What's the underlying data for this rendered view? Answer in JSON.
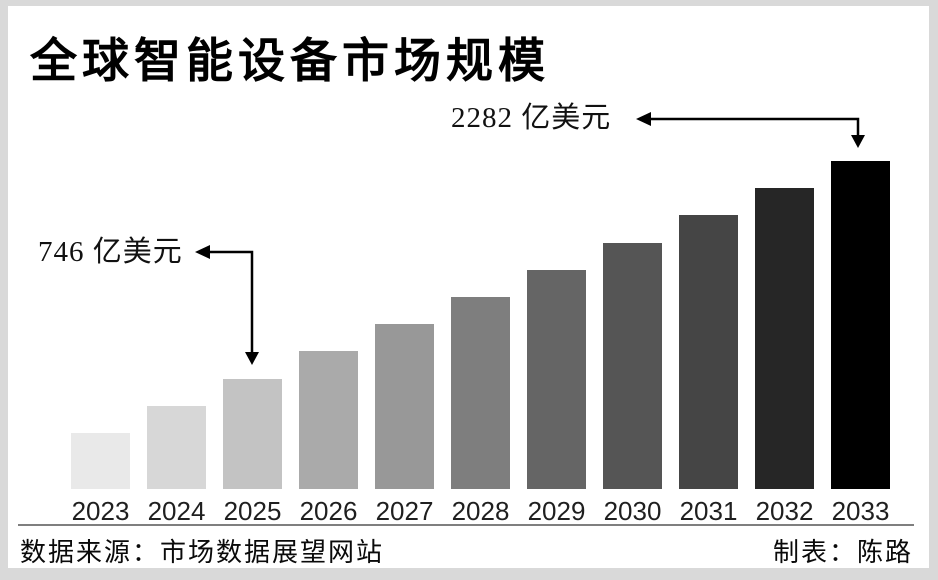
{
  "title": "全球智能设备市场规模",
  "annotations": {
    "max": {
      "label": "2282 亿美元",
      "target_year": "2033"
    },
    "mid": {
      "label": "746 亿美元",
      "target_year": "2025"
    }
  },
  "chart_data": {
    "type": "bar",
    "title": "全球智能设备市场规模",
    "categories": [
      "2023",
      "2024",
      "2025",
      "2026",
      "2027",
      "2028",
      "2029",
      "2030",
      "2031",
      "2032",
      "2033"
    ],
    "values": [
      362,
      554,
      746,
      938,
      1130,
      1322,
      1514,
      1706,
      1898,
      2090,
      2282
    ],
    "labeled_values": {
      "2025": 746,
      "2033": 2282
    },
    "unit": "亿美元",
    "xlabel": "",
    "ylabel": "",
    "ylim": [
      0,
      2282
    ],
    "grid": false,
    "legend": false,
    "value_axis_hidden": true,
    "bar_colors": [
      "#e9e9e9",
      "#d7d7d7",
      "#c3c3c3",
      "#aaaaaa",
      "#989898",
      "#7e7e7e",
      "#656565",
      "#555555",
      "#454545",
      "#262626",
      "#000000"
    ],
    "annotations": [
      {
        "text": "746 亿美元",
        "target": "2025"
      },
      {
        "text": "2282 亿美元",
        "target": "2033"
      }
    ]
  },
  "footer": {
    "source": "数据来源：市场数据展望网站",
    "credit": "制表：陈路"
  }
}
